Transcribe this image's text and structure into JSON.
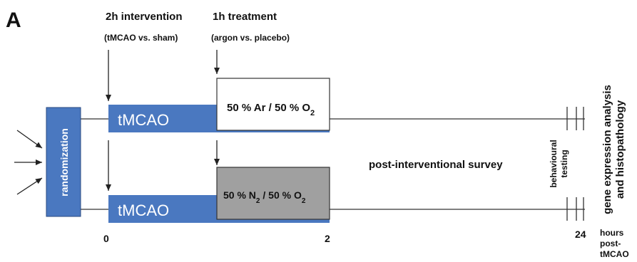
{
  "panel_label": "A",
  "phase_labels": {
    "intervention_title": "2h intervention",
    "intervention_sub": "(tMCAO vs. sham)",
    "treatment_title": "1h treatment",
    "treatment_sub": "(argon vs. placebo)"
  },
  "randomization": "randomization",
  "groups": {
    "argon": {
      "surgery": "tMCAO",
      "gas_a": "50 % Ar / 50 % O",
      "gas_a_sub": "2"
    },
    "placebo": {
      "surgery": "tMCAO",
      "gas_b_pre": "50 % N",
      "gas_b_sub1": "2",
      "gas_b_mid": " / 50 % O",
      "gas_b_sub2": "2"
    }
  },
  "survey": "post-interventional survey",
  "behavioural": [
    "behavioural",
    "testing"
  ],
  "analysis": [
    "gene expression analysis",
    "and histopathology"
  ],
  "axis": {
    "ticks": [
      "0",
      "2",
      "24"
    ],
    "unit": [
      "hours",
      "post-",
      "tMCAO"
    ]
  },
  "colors": {
    "tmcao_blue": "#4a78c0",
    "argon_box": "#ffffff",
    "placebo_box": "#a0a0a0",
    "line": "#333333"
  }
}
